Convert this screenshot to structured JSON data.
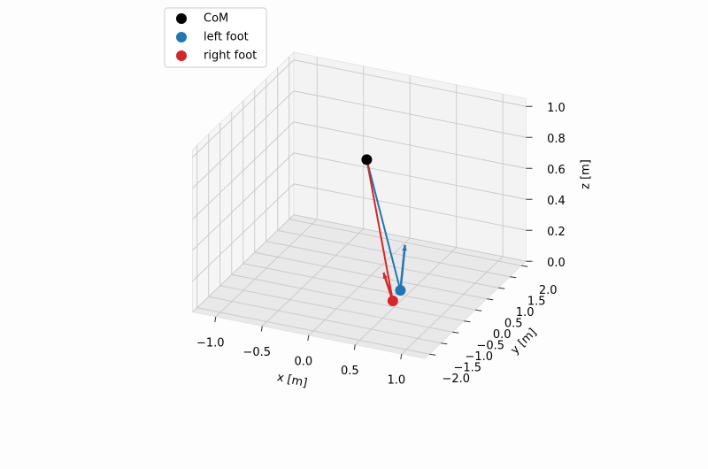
{
  "chart_data": {
    "type": "scatter3d",
    "x_label": "x [m]",
    "y_label": "y [m]",
    "z_label": "z [m]",
    "xlim": [
      -1.25,
      1.25
    ],
    "ylim": [
      -2.2,
      2.2
    ],
    "zlim": [
      0,
      1.05
    ],
    "xticks": [
      {
        "value": -1,
        "label": "−1.0"
      },
      {
        "value": -0.5,
        "label": "−0.5"
      },
      {
        "value": 0,
        "label": "0.0"
      },
      {
        "value": 0.5,
        "label": "0.5"
      },
      {
        "value": 1,
        "label": "1.0"
      }
    ],
    "yticks": [
      {
        "value": -2,
        "label": "−2.0"
      },
      {
        "value": -1.5,
        "label": "−1.5"
      },
      {
        "value": -1,
        "label": "−1.0"
      },
      {
        "value": -0.5,
        "label": "−0.5"
      },
      {
        "value": 0,
        "label": "0.0"
      },
      {
        "value": 0.5,
        "label": "0.5"
      },
      {
        "value": 1,
        "label": "1.0"
      },
      {
        "value": 1.5,
        "label": "1.5"
      },
      {
        "value": 2,
        "label": "2.0"
      }
    ],
    "zticks": [
      {
        "value": 0,
        "label": "0.0"
      },
      {
        "value": 0.2,
        "label": "0.2"
      },
      {
        "value": 0.4,
        "label": "0.4"
      },
      {
        "value": 0.6,
        "label": "0.6"
      },
      {
        "value": 0.8,
        "label": "0.8"
      },
      {
        "value": 1,
        "label": "1.0"
      }
    ],
    "grid": true,
    "legend": "upper left",
    "series": [
      {
        "name": "CoM",
        "color": "#000000",
        "x": [
          0.08
        ],
        "y": [
          0
        ],
        "z": [
          0.83
        ]
      },
      {
        "name": "left foot",
        "color": "#1f77b4",
        "x": [
          0.4
        ],
        "y": [
          0.17
        ],
        "z": [
          0
        ],
        "arrow": [
          0.05,
          0,
          0.3
        ]
      },
      {
        "name": "right foot",
        "color": "#d62728",
        "x": [
          0.43
        ],
        "y": [
          -0.28
        ],
        "z": [
          0
        ],
        "arrow": [
          -0.1,
          0,
          0.17
        ]
      }
    ]
  }
}
